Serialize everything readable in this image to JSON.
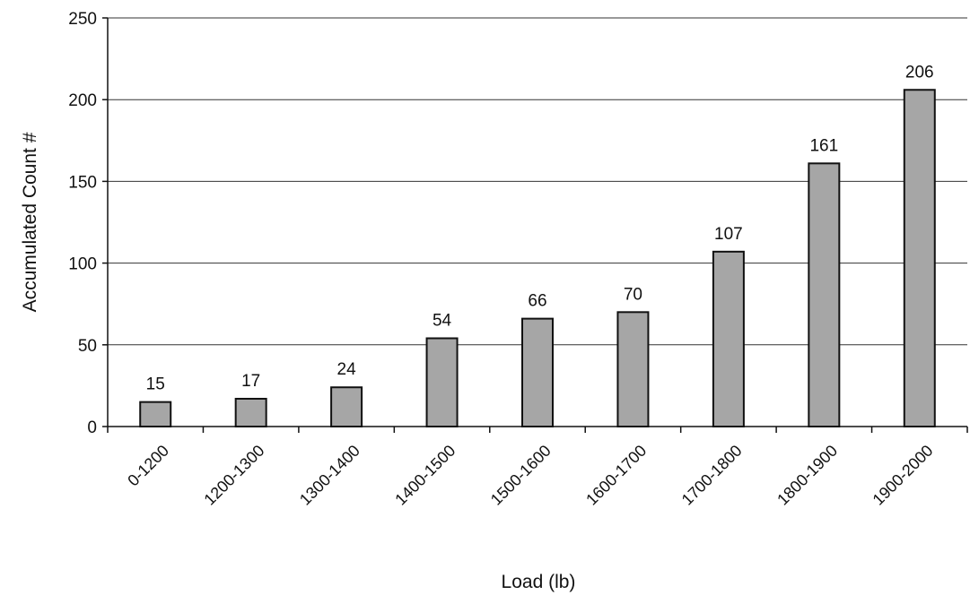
{
  "chart_data": {
    "type": "bar",
    "categories": [
      "0-1200",
      "1200-1300",
      "1300-1400",
      "1400-1500",
      "1500-1600",
      "1600-1700",
      "1700-1800",
      "1800-1900",
      "1900-2000"
    ],
    "values": [
      15,
      17,
      24,
      54,
      66,
      70,
      107,
      161,
      206
    ],
    "data_labels": [
      "15",
      "17",
      "24",
      "54",
      "66",
      "70",
      "107",
      "161",
      "206"
    ],
    "title": "",
    "xlabel": "Load (lb)",
    "ylabel": "Accumulated Count #",
    "ylim": [
      0,
      250
    ],
    "yticks": [
      0,
      50,
      100,
      150,
      200,
      250
    ],
    "grid": true,
    "legend": "none",
    "bar_color": "#a6a6a6",
    "bar_edge_color": "#111111",
    "grid_color": "#333333"
  }
}
